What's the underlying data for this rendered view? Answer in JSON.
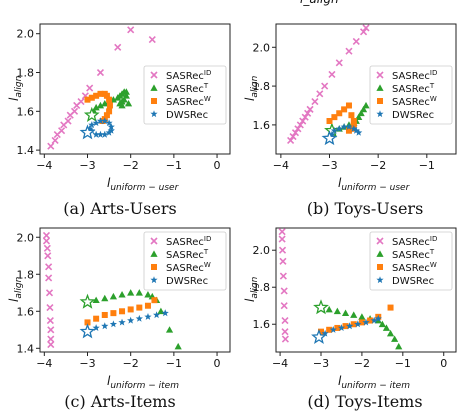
{
  "colors": {
    "SASRec_ID": "#e377c2",
    "SASRec_T": "#2ca02c",
    "SASRec_W": "#ff7f0e",
    "DWSRec": "#1f77b4"
  },
  "legend_labels": [
    {
      "base": "SASRec",
      "sup": "ID"
    },
    {
      "base": "SASRec",
      "sup": "T"
    },
    {
      "base": "SASRec",
      "sup": "W"
    },
    {
      "base": "DWSRec",
      "sup": ""
    }
  ],
  "top_partial_text": "l_align",
  "chart_data": [
    {
      "type": "scatter",
      "caption": "(a) Arts-Users",
      "xlabel_main": "l",
      "xlabel_sub": "uniform − user",
      "ylabel_main": "l",
      "ylabel_sub": "align",
      "xlim": [
        -4.1,
        0.3
      ],
      "ylim": [
        1.38,
        2.05
      ],
      "xticks": [
        "−4",
        "−3",
        "−2",
        "−1",
        "0"
      ],
      "yticks": [
        "1.4",
        "1.6",
        "1.8",
        "2.0"
      ],
      "legend": "center-right",
      "series": [
        {
          "name": "SASRec^ID",
          "marker": "x",
          "x": [
            -3.85,
            -3.75,
            -3.7,
            -3.6,
            -3.55,
            -3.45,
            -3.4,
            -3.3,
            -3.25,
            -3.15,
            -3.05,
            -2.95,
            -2.7,
            -2.3,
            -2.0,
            -1.5
          ],
          "y": [
            1.42,
            1.45,
            1.48,
            1.5,
            1.53,
            1.55,
            1.58,
            1.6,
            1.63,
            1.65,
            1.68,
            1.72,
            1.8,
            1.93,
            2.02,
            1.97
          ]
        },
        {
          "name": "SASRec^T",
          "marker": "^",
          "x": [
            -2.9,
            -2.85,
            -2.8,
            -2.7,
            -2.6,
            -2.5,
            -2.4,
            -2.3,
            -2.25,
            -2.2,
            -2.15,
            -2.1,
            -2.1,
            -2.15,
            -2.2,
            -2.25,
            -2.2,
            -2.05
          ],
          "y": [
            1.58,
            1.6,
            1.62,
            1.63,
            1.64,
            1.65,
            1.66,
            1.67,
            1.68,
            1.69,
            1.7,
            1.7,
            1.68,
            1.66,
            1.65,
            1.64,
            1.63,
            1.64
          ]
        },
        {
          "name": "SASRec^W",
          "marker": "s",
          "x": [
            -3.0,
            -2.9,
            -2.8,
            -2.7,
            -2.6,
            -2.55,
            -2.5,
            -2.48,
            -2.5,
            -2.55,
            -2.6,
            -2.65
          ],
          "y": [
            1.66,
            1.67,
            1.68,
            1.69,
            1.69,
            1.68,
            1.66,
            1.63,
            1.6,
            1.58,
            1.56,
            1.55
          ]
        },
        {
          "name": "DWSRec",
          "marker": "*",
          "x": [
            -3.0,
            -2.95,
            -2.9,
            -2.8,
            -2.7,
            -2.6,
            -2.5,
            -2.45,
            -2.45,
            -2.5,
            -2.6,
            -2.7,
            -2.8,
            -2.9
          ],
          "y": [
            1.49,
            1.51,
            1.53,
            1.54,
            1.55,
            1.55,
            1.54,
            1.52,
            1.5,
            1.49,
            1.48,
            1.48,
            1.48,
            1.5
          ]
        }
      ]
    },
    {
      "type": "scatter",
      "caption": "(b) Toys-Users",
      "xlabel_main": "l",
      "xlabel_sub": "uniform − user",
      "ylabel_main": "l",
      "ylabel_sub": "align",
      "xlim": [
        -4.1,
        -0.4
      ],
      "ylim": [
        1.45,
        2.12
      ],
      "xticks": [
        "−4",
        "−3",
        "−2",
        "−1"
      ],
      "yticks": [
        "1.6",
        "1.8",
        "2.0"
      ],
      "legend": "center-right",
      "series": [
        {
          "name": "SASRec^ID",
          "marker": "x",
          "x": [
            -3.8,
            -3.75,
            -3.7,
            -3.65,
            -3.6,
            -3.55,
            -3.5,
            -3.45,
            -3.4,
            -3.3,
            -3.2,
            -3.1,
            -2.95,
            -2.8,
            -2.6,
            -2.45,
            -2.3,
            -2.25
          ],
          "y": [
            1.52,
            1.54,
            1.56,
            1.58,
            1.6,
            1.62,
            1.64,
            1.66,
            1.68,
            1.72,
            1.76,
            1.8,
            1.86,
            1.92,
            1.98,
            2.03,
            2.08,
            2.1
          ]
        },
        {
          "name": "SASRec^T",
          "marker": "^",
          "x": [
            -2.95,
            -2.8,
            -2.7,
            -2.6,
            -2.5,
            -2.45,
            -2.4,
            -2.35,
            -2.3,
            -2.25
          ],
          "y": [
            1.57,
            1.58,
            1.59,
            1.6,
            1.61,
            1.62,
            1.64,
            1.66,
            1.68,
            1.7
          ]
        },
        {
          "name": "SASRec^W",
          "marker": "s",
          "x": [
            -3.0,
            -2.9,
            -2.8,
            -2.7,
            -2.6,
            -2.55,
            -2.5,
            -2.5,
            -2.55,
            -2.6
          ],
          "y": [
            1.62,
            1.64,
            1.66,
            1.68,
            1.7,
            1.65,
            1.62,
            1.6,
            1.58,
            1.57
          ]
        },
        {
          "name": "DWSRec",
          "marker": "*",
          "x": [
            -3.0,
            -2.95,
            -2.9,
            -2.8,
            -2.7,
            -2.6,
            -2.5,
            -2.45,
            -2.4
          ],
          "y": [
            1.53,
            1.55,
            1.57,
            1.58,
            1.59,
            1.59,
            1.58,
            1.57,
            1.56
          ]
        }
      ]
    },
    {
      "type": "scatter",
      "caption": "(c) Arts-Items",
      "xlabel_main": "l",
      "xlabel_sub": "uniform − item",
      "ylabel_main": "l",
      "ylabel_sub": "align",
      "xlim": [
        -4.1,
        0.3
      ],
      "ylim": [
        1.38,
        2.05
      ],
      "xticks": [
        "−4",
        "−3",
        "−2",
        "−1",
        "0"
      ],
      "yticks": [
        "1.4",
        "1.6",
        "1.8",
        "2.0"
      ],
      "legend": "top-right",
      "series": [
        {
          "name": "SASRec^ID",
          "marker": "x",
          "x": [
            -3.95,
            -3.95,
            -3.93,
            -3.92,
            -3.9,
            -3.9,
            -3.88,
            -3.87,
            -3.86,
            -3.85,
            -3.85,
            -3.85
          ],
          "y": [
            2.01,
            1.98,
            1.94,
            1.9,
            1.84,
            1.78,
            1.7,
            1.62,
            1.55,
            1.5,
            1.45,
            1.42
          ]
        },
        {
          "name": "SASRec^T",
          "marker": "^",
          "x": [
            -3.0,
            -2.8,
            -2.6,
            -2.4,
            -2.2,
            -2.0,
            -1.8,
            -1.6,
            -1.5,
            -1.4,
            -1.3,
            -1.1,
            -0.9
          ],
          "y": [
            1.65,
            1.66,
            1.67,
            1.68,
            1.69,
            1.7,
            1.7,
            1.69,
            1.68,
            1.66,
            1.6,
            1.5,
            1.41
          ]
        },
        {
          "name": "SASRec^W",
          "marker": "s",
          "x": [
            -3.0,
            -2.8,
            -2.6,
            -2.4,
            -2.2,
            -2.0,
            -1.8,
            -1.6,
            -1.45
          ],
          "y": [
            1.54,
            1.56,
            1.58,
            1.59,
            1.6,
            1.61,
            1.62,
            1.63,
            1.66
          ]
        },
        {
          "name": "DWSRec",
          "marker": "*",
          "x": [
            -3.0,
            -2.8,
            -2.6,
            -2.4,
            -2.2,
            -2.0,
            -1.8,
            -1.6,
            -1.4,
            -1.2
          ],
          "y": [
            1.49,
            1.51,
            1.52,
            1.53,
            1.54,
            1.55,
            1.56,
            1.57,
            1.58,
            1.59
          ]
        }
      ]
    },
    {
      "type": "scatter",
      "caption": "(d) Toys-Items",
      "xlabel_main": "l",
      "xlabel_sub": "uniform − item",
      "ylabel_main": "l",
      "ylabel_sub": "align",
      "xlim": [
        -4.1,
        0.3
      ],
      "ylim": [
        1.45,
        2.12
      ],
      "xticks": [
        "−4",
        "−3",
        "−2",
        "−1",
        "0"
      ],
      "yticks": [
        "1.6",
        "1.8",
        "2.0"
      ],
      "legend": "top-right",
      "series": [
        {
          "name": "SASRec^ID",
          "marker": "x",
          "x": [
            -3.95,
            -3.95,
            -3.94,
            -3.93,
            -3.92,
            -3.9,
            -3.9,
            -3.88,
            -3.88,
            -3.87
          ],
          "y": [
            2.1,
            2.06,
            2.0,
            1.94,
            1.86,
            1.78,
            1.7,
            1.62,
            1.56,
            1.52
          ]
        },
        {
          "name": "SASRec^T",
          "marker": "^",
          "x": [
            -3.0,
            -2.8,
            -2.6,
            -2.4,
            -2.2,
            -2.0,
            -1.8,
            -1.6,
            -1.5,
            -1.4,
            -1.3,
            -1.2,
            -1.1
          ],
          "y": [
            1.69,
            1.68,
            1.67,
            1.66,
            1.65,
            1.64,
            1.63,
            1.62,
            1.6,
            1.58,
            1.55,
            1.52,
            1.48
          ]
        },
        {
          "name": "SASRec^W",
          "marker": "s",
          "x": [
            -3.0,
            -2.8,
            -2.6,
            -2.4,
            -2.2,
            -2.0,
            -1.8,
            -1.6,
            -1.3
          ],
          "y": [
            1.56,
            1.57,
            1.58,
            1.59,
            1.6,
            1.61,
            1.62,
            1.64,
            1.69
          ]
        },
        {
          "name": "DWSRec",
          "marker": "*",
          "x": [
            -3.05,
            -2.9,
            -2.7,
            -2.5,
            -2.3,
            -2.1,
            -1.9,
            -1.7,
            -1.6
          ],
          "y": [
            1.53,
            1.55,
            1.57,
            1.58,
            1.59,
            1.6,
            1.61,
            1.62,
            1.63
          ]
        }
      ]
    }
  ]
}
